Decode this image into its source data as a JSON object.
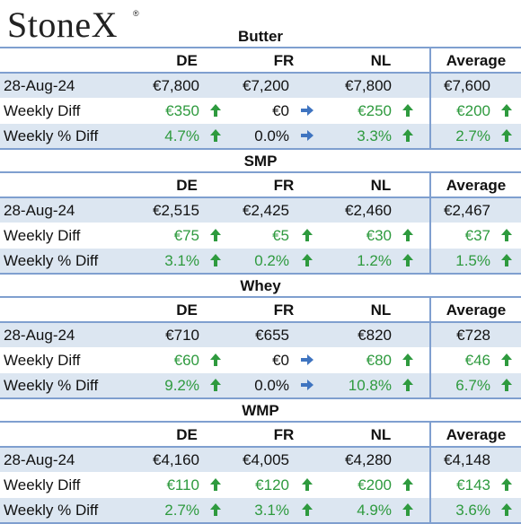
{
  "logo": "StoneX",
  "sections": [
    {
      "title": "Butter",
      "columns": [
        "DE",
        "FR",
        "NL",
        "Average"
      ],
      "rows": [
        {
          "label": "28-Aug-24",
          "cells": [
            {
              "text": "€7,800"
            },
            {
              "text": "€7,200"
            },
            {
              "text": "€7,800"
            },
            {
              "text": "€7,600"
            }
          ]
        },
        {
          "label": "Weekly Diff",
          "cells": [
            {
              "text": "€350",
              "arrow": "up"
            },
            {
              "text": "€0",
              "arrow": "right"
            },
            {
              "text": "€250",
              "arrow": "up"
            },
            {
              "text": "€200",
              "arrow": "up"
            }
          ]
        },
        {
          "label": "Weekly % Diff",
          "cells": [
            {
              "text": "4.7%",
              "arrow": "up"
            },
            {
              "text": "0.0%",
              "arrow": "right"
            },
            {
              "text": "3.3%",
              "arrow": "up"
            },
            {
              "text": "2.7%",
              "arrow": "up"
            }
          ]
        }
      ]
    },
    {
      "title": "SMP",
      "columns": [
        "DE",
        "FR",
        "NL",
        "Average"
      ],
      "rows": [
        {
          "label": "28-Aug-24",
          "cells": [
            {
              "text": "€2,515"
            },
            {
              "text": "€2,425"
            },
            {
              "text": "€2,460"
            },
            {
              "text": "€2,467"
            }
          ]
        },
        {
          "label": "Weekly Diff",
          "cells": [
            {
              "text": "€75",
              "arrow": "up"
            },
            {
              "text": "€5",
              "arrow": "up"
            },
            {
              "text": "€30",
              "arrow": "up"
            },
            {
              "text": "€37",
              "arrow": "up"
            }
          ]
        },
        {
          "label": "Weekly % Diff",
          "cells": [
            {
              "text": "3.1%",
              "arrow": "up"
            },
            {
              "text": "0.2%",
              "arrow": "up"
            },
            {
              "text": "1.2%",
              "arrow": "up"
            },
            {
              "text": "1.5%",
              "arrow": "up"
            }
          ]
        }
      ]
    },
    {
      "title": "Whey",
      "columns": [
        "DE",
        "FR",
        "NL",
        "Average"
      ],
      "rows": [
        {
          "label": "28-Aug-24",
          "cells": [
            {
              "text": "€710"
            },
            {
              "text": "€655"
            },
            {
              "text": "€820"
            },
            {
              "text": "€728"
            }
          ]
        },
        {
          "label": "Weekly Diff",
          "cells": [
            {
              "text": "€60",
              "arrow": "up"
            },
            {
              "text": "€0",
              "arrow": "right"
            },
            {
              "text": "€80",
              "arrow": "up"
            },
            {
              "text": "€46",
              "arrow": "up"
            }
          ]
        },
        {
          "label": "Weekly % Diff",
          "cells": [
            {
              "text": "9.2%",
              "arrow": "up"
            },
            {
              "text": "0.0%",
              "arrow": "right"
            },
            {
              "text": "10.8%",
              "arrow": "up"
            },
            {
              "text": "6.7%",
              "arrow": "up"
            }
          ]
        }
      ]
    },
    {
      "title": "WMP",
      "columns": [
        "DE",
        "FR",
        "NL",
        "Average"
      ],
      "rows": [
        {
          "label": "28-Aug-24",
          "cells": [
            {
              "text": "€4,160"
            },
            {
              "text": "€4,005"
            },
            {
              "text": "€4,280"
            },
            {
              "text": "€4,148"
            }
          ]
        },
        {
          "label": "Weekly Diff",
          "cells": [
            {
              "text": "€110",
              "arrow": "up"
            },
            {
              "text": "€120",
              "arrow": "up"
            },
            {
              "text": "€200",
              "arrow": "up"
            },
            {
              "text": "€143",
              "arrow": "up"
            }
          ]
        },
        {
          "label": "Weekly % Diff",
          "cells": [
            {
              "text": "2.7%",
              "arrow": "up"
            },
            {
              "text": "3.1%",
              "arrow": "up"
            },
            {
              "text": "4.9%",
              "arrow": "up"
            },
            {
              "text": "3.6%",
              "arrow": "up"
            }
          ]
        }
      ]
    }
  ]
}
